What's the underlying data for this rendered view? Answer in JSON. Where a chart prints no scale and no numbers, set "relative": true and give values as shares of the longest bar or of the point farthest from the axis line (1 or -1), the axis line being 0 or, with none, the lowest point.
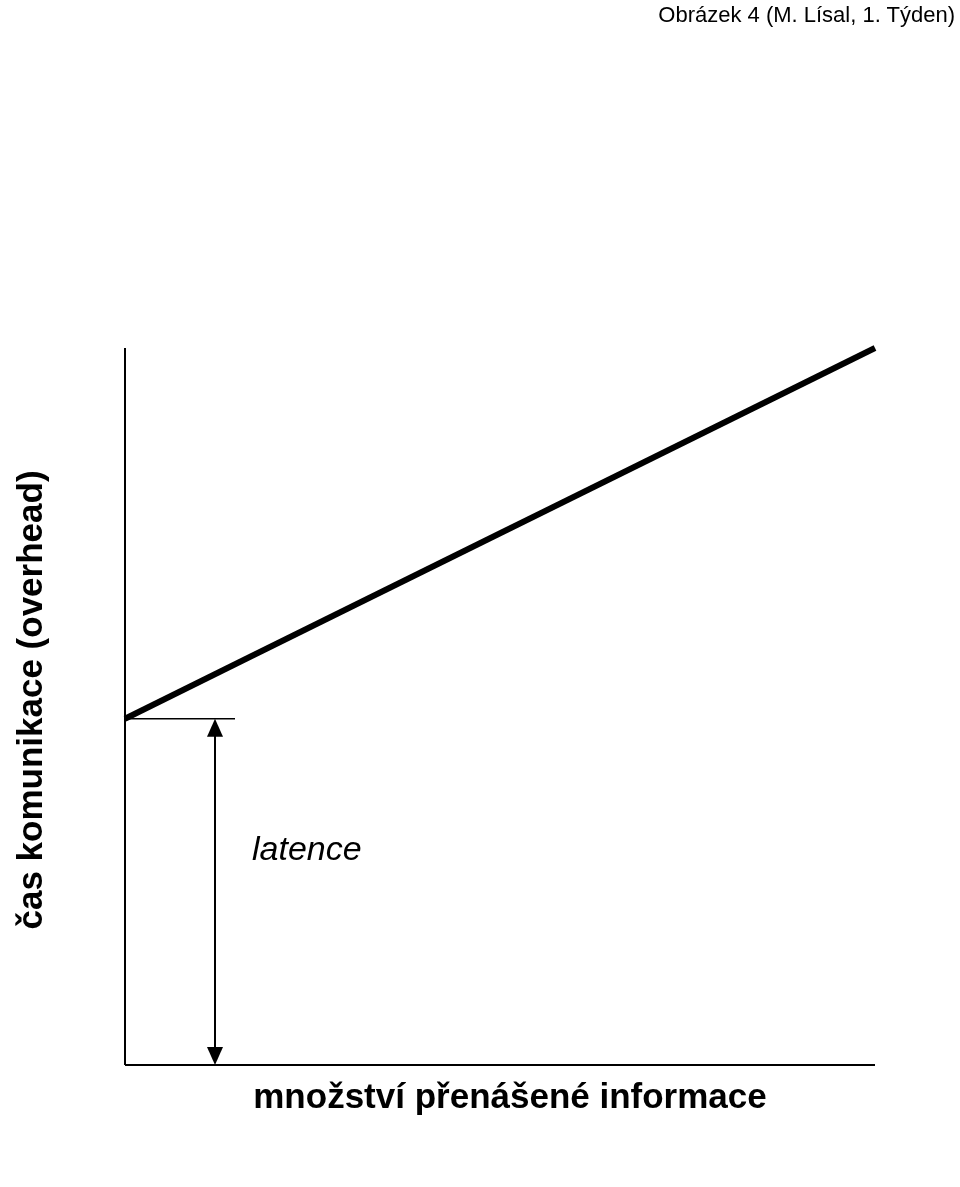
{
  "chart_data": {
    "type": "line",
    "title": "Obrázek 4 (M. Lísal, 1. Týden)",
    "xlabel": "množství přenášené informace",
    "ylabel": "čas komunikace (overhead)",
    "annotations": [
      "latence"
    ],
    "categories": [
      null,
      null
    ],
    "relative": true,
    "series": [
      {
        "color": "#000000",
        "values": [
          0.483,
          1
        ]
      }
    ],
    "marker": "none",
    "line_style": "solid"
  }
}
